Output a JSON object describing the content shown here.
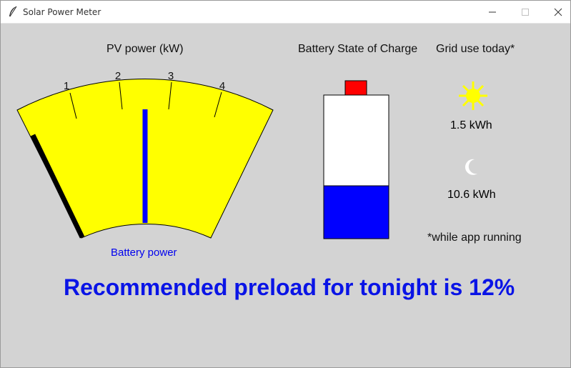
{
  "window": {
    "title": "Solar Power Meter",
    "icon": "feather-icon",
    "controls": [
      "minimize-icon",
      "maximize-icon",
      "close-icon"
    ]
  },
  "gauge": {
    "title": "PV power (kW)",
    "ticks": [
      "1",
      "2",
      "3",
      "4"
    ],
    "pv_needle_kw": 2.5,
    "battery_label": "Battery power",
    "colors": {
      "face": "#ffff00",
      "pv_needle": "#0000ff",
      "battery_needle": "#000000"
    }
  },
  "battery": {
    "title": "Battery State of Charge",
    "charge_fraction": 0.37,
    "colors": {
      "terminal": "#ff0000",
      "charge": "#0000ff",
      "empty": "#ffffff"
    }
  },
  "grid": {
    "title": "Grid use today*",
    "day_icon": "sun-icon",
    "day_value": "1.5 kWh",
    "night_icon": "moon-icon",
    "night_value": "10.6 kWh",
    "footnote": "*while app running",
    "sun_color": "#ffff00"
  },
  "recommendation": {
    "text": "Recommended preload for tonight is 12%",
    "color": "#0a14e6"
  }
}
